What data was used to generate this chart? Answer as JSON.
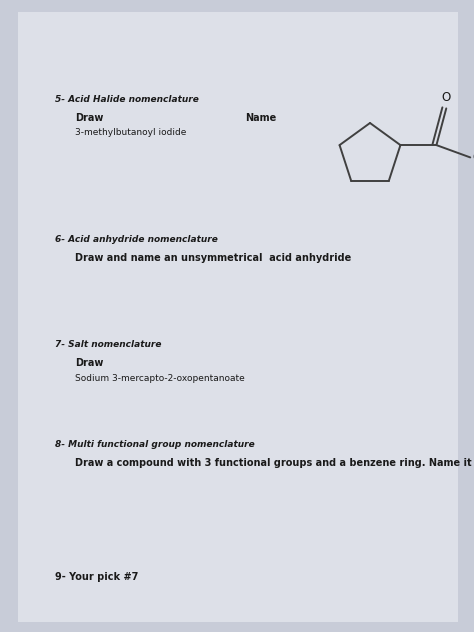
{
  "background_color": "#c8ccd8",
  "paper_color": "#dde0e8",
  "title5": "5- Acid Halide nomenclature",
  "draw5": "Draw",
  "name5": "Name",
  "sub5": "3-methylbutanoyl iodide",
  "title6": "6- Acid anhydride nomenclature",
  "sub6": "Draw and name an unsymmetrical  acid anhydride",
  "title7": "7- Salt nomenclature",
  "draw7": "Draw",
  "sub7": "Sodium 3-mercapto-2-oxopentanoate",
  "title8": "8- Multi functional group nomenclature",
  "sub8": "Draw a compound with 3 functional groups and a benzene ring. Name it",
  "title9": "9- Your pick #7",
  "fig_width": 4.74,
  "fig_height": 6.32,
  "dpi": 100
}
